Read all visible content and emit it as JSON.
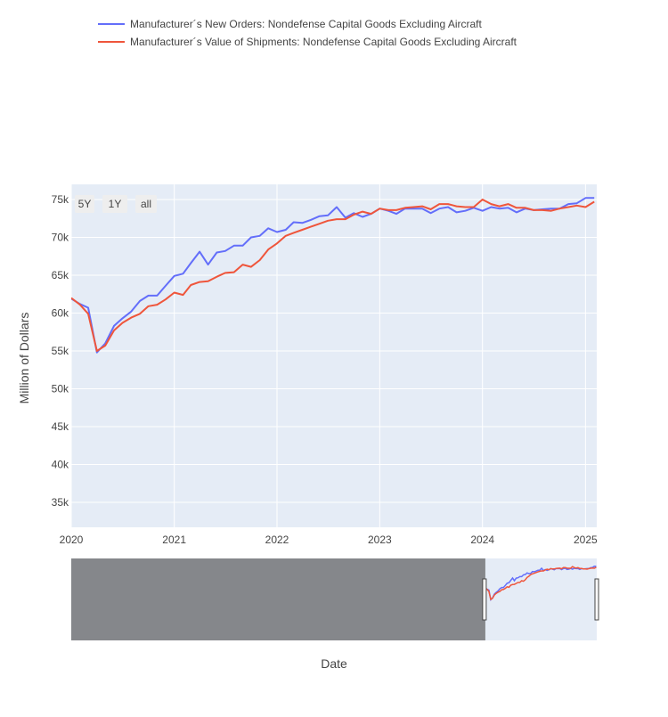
{
  "chart_data": {
    "type": "line",
    "xlabel": "Date",
    "ylabel": "Million of Dollars",
    "x_ticks": [
      "2020",
      "2021",
      "2022",
      "2023",
      "2024",
      "2025"
    ],
    "y_ticks": [
      "35k",
      "40k",
      "45k",
      "50k",
      "55k",
      "60k",
      "65k",
      "70k",
      "75k"
    ],
    "xlim": [
      "2020-01-01",
      "2025-02-10"
    ],
    "ylim": [
      31700,
      77000
    ],
    "grid": true,
    "legend_position": "top",
    "range_selector": [
      "5Y",
      "1Y",
      "all"
    ],
    "range_slider": true,
    "range_slider_window": [
      "2020-01-01",
      "2025-02-10"
    ],
    "series": [
      {
        "name": "Manufacturer´s New Orders: Nondefense Capital Goods Excluding Aircraft",
        "color": "#636efa",
        "x": [
          "2020-01-01",
          "2020-02-01",
          "2020-03-01",
          "2020-04-01",
          "2020-05-01",
          "2020-06-01",
          "2020-07-01",
          "2020-08-01",
          "2020-09-01",
          "2020-10-01",
          "2020-11-01",
          "2020-12-01",
          "2021-01-01",
          "2021-02-01",
          "2021-03-01",
          "2021-04-01",
          "2021-05-01",
          "2021-06-01",
          "2021-07-01",
          "2021-08-01",
          "2021-09-01",
          "2021-10-01",
          "2021-11-01",
          "2021-12-01",
          "2022-01-01",
          "2022-02-01",
          "2022-03-01",
          "2022-04-01",
          "2022-05-01",
          "2022-06-01",
          "2022-07-01",
          "2022-08-01",
          "2022-09-01",
          "2022-10-01",
          "2022-11-01",
          "2022-12-01",
          "2023-01-01",
          "2023-02-01",
          "2023-03-01",
          "2023-04-01",
          "2023-05-01",
          "2023-06-01",
          "2023-07-01",
          "2023-08-01",
          "2023-09-01",
          "2023-10-01",
          "2023-11-01",
          "2023-12-01",
          "2024-01-01",
          "2024-02-01",
          "2024-03-01",
          "2024-04-01",
          "2024-05-01",
          "2024-06-01",
          "2024-07-01",
          "2024-08-01",
          "2024-09-01",
          "2024-10-01",
          "2024-11-01",
          "2024-12-01",
          "2025-01-01",
          "2025-02-01"
        ],
        "values": [
          61900,
          61200,
          60700,
          54800,
          56000,
          58300,
          59300,
          60200,
          61600,
          62300,
          62300,
          63600,
          64900,
          65200,
          66600,
          68100,
          66400,
          68000,
          68200,
          68900,
          68900,
          70000,
          70200,
          71200,
          70700,
          71000,
          72000,
          71900,
          72300,
          72800,
          72900,
          74000,
          72600,
          73200,
          72700,
          73100,
          73800,
          73500,
          73100,
          73800,
          73800,
          73800,
          73200,
          73800,
          74000,
          73300,
          73500,
          73900,
          73500,
          74000,
          73800,
          73900,
          73300,
          73800,
          73600,
          73700,
          73800,
          73800,
          74400,
          74500,
          75200,
          75200
        ]
      },
      {
        "name": "Manufacturer´s Value of Shipments: Nondefense Capital Goods Excluding Aircraft",
        "color": "#ef553b",
        "x": [
          "2020-01-01",
          "2020-02-01",
          "2020-03-01",
          "2020-04-01",
          "2020-05-01",
          "2020-06-01",
          "2020-07-01",
          "2020-08-01",
          "2020-09-01",
          "2020-10-01",
          "2020-11-01",
          "2020-12-01",
          "2021-01-01",
          "2021-02-01",
          "2021-03-01",
          "2021-04-01",
          "2021-05-01",
          "2021-06-01",
          "2021-07-01",
          "2021-08-01",
          "2021-09-01",
          "2021-10-01",
          "2021-11-01",
          "2021-12-01",
          "2022-01-01",
          "2022-02-01",
          "2022-03-01",
          "2022-04-01",
          "2022-05-01",
          "2022-06-01",
          "2022-07-01",
          "2022-08-01",
          "2022-09-01",
          "2022-10-01",
          "2022-11-01",
          "2022-12-01",
          "2023-01-01",
          "2023-02-01",
          "2023-03-01",
          "2023-04-01",
          "2023-05-01",
          "2023-06-01",
          "2023-07-01",
          "2023-08-01",
          "2023-09-01",
          "2023-10-01",
          "2023-11-01",
          "2023-12-01",
          "2024-01-01",
          "2024-02-01",
          "2024-03-01",
          "2024-04-01",
          "2024-05-01",
          "2024-06-01",
          "2024-07-01",
          "2024-08-01",
          "2024-09-01",
          "2024-10-01",
          "2024-11-01",
          "2024-12-01",
          "2025-01-01",
          "2025-02-01"
        ],
        "values": [
          62000,
          61100,
          59900,
          55000,
          55700,
          57700,
          58700,
          59400,
          59900,
          60900,
          61100,
          61800,
          62700,
          62400,
          63700,
          64100,
          64200,
          64800,
          65300,
          65400,
          66400,
          66100,
          67000,
          68400,
          69200,
          70200,
          70600,
          71000,
          71400,
          71800,
          72200,
          72400,
          72400,
          73000,
          73400,
          73100,
          73800,
          73600,
          73600,
          73900,
          74000,
          74100,
          73700,
          74400,
          74400,
          74100,
          74000,
          74000,
          75000,
          74400,
          74100,
          74400,
          73900,
          73900,
          73600,
          73600,
          73500,
          73800,
          74000,
          74200,
          74000,
          74700
        ]
      }
    ]
  }
}
